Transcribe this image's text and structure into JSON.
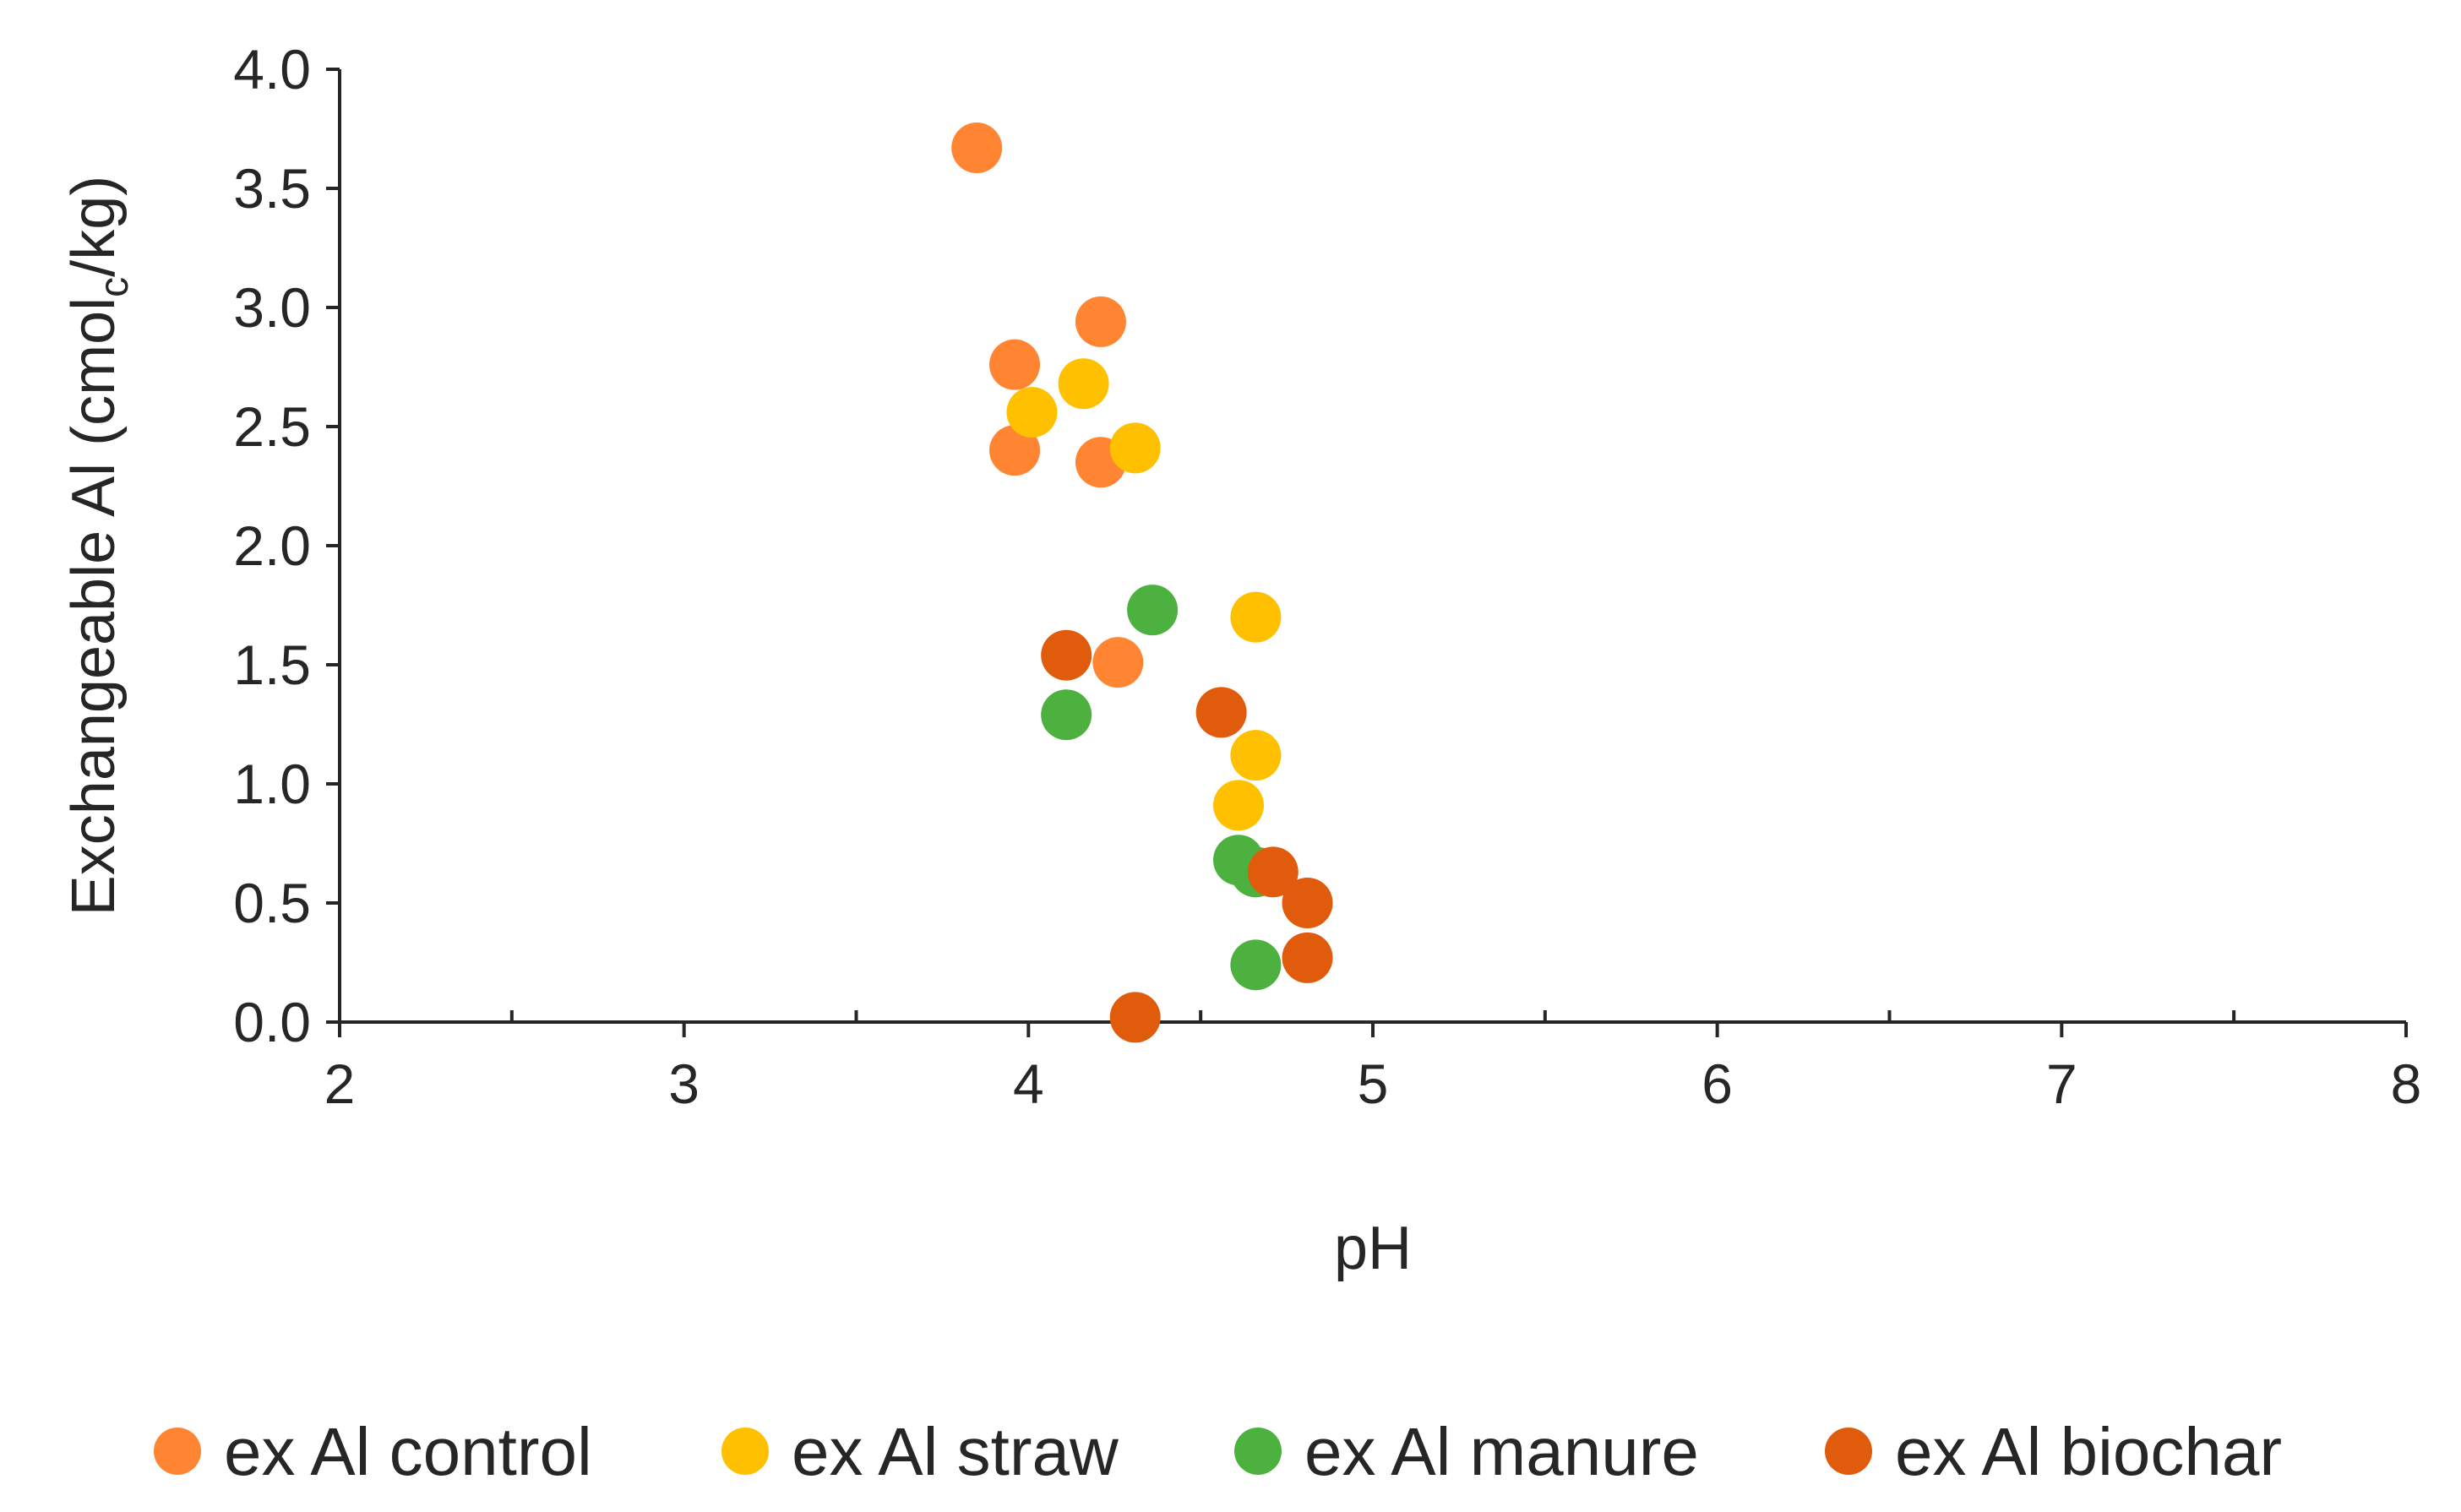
{
  "chart_data": {
    "type": "scatter",
    "title": "",
    "xlabel": "pH",
    "ylabel": {
      "main": "Exchangeable Al (cmol",
      "subscript": "c",
      "suffix": "/kg)"
    },
    "xlim": [
      2,
      8
    ],
    "ylim": [
      0,
      4
    ],
    "xticks": [
      2,
      3,
      4,
      5,
      6,
      7,
      8
    ],
    "xtick_labels": [
      "2",
      "3",
      "4",
      "5",
      "6",
      "7",
      "8"
    ],
    "yticks": [
      0,
      0.5,
      1,
      1.5,
      2,
      2.5,
      3,
      3.5,
      4
    ],
    "ytick_labels": [
      "0.0",
      "0.5",
      "1.0",
      "1.5",
      "2.0",
      "2.5",
      "3.0",
      "3.5",
      "4.0"
    ],
    "grid": false,
    "legend_position": "bottom",
    "series": [
      {
        "name": "ex Al control",
        "color": "#FF8533",
        "points": [
          {
            "x": 3.85,
            "y": 3.67
          },
          {
            "x": 4.21,
            "y": 2.94
          },
          {
            "x": 3.96,
            "y": 2.76
          },
          {
            "x": 3.96,
            "y": 2.4
          },
          {
            "x": 4.21,
            "y": 2.35
          },
          {
            "x": 4.26,
            "y": 1.51
          }
        ]
      },
      {
        "name": "ex Al straw",
        "color": "#FFC000",
        "points": [
          {
            "x": 4.16,
            "y": 2.68
          },
          {
            "x": 4.01,
            "y": 2.56
          },
          {
            "x": 4.31,
            "y": 2.41
          },
          {
            "x": 4.66,
            "y": 1.7
          },
          {
            "x": 4.66,
            "y": 1.12
          },
          {
            "x": 4.61,
            "y": 0.91
          }
        ]
      },
      {
        "name": "ex Al manure",
        "color": "#4CB13F",
        "points": [
          {
            "x": 4.36,
            "y": 1.73
          },
          {
            "x": 4.11,
            "y": 1.29
          },
          {
            "x": 4.61,
            "y": 0.68
          },
          {
            "x": 4.66,
            "y": 0.63
          },
          {
            "x": 4.66,
            "y": 0.24
          }
        ]
      },
      {
        "name": "ex Al biochar",
        "color": "#E05C0C",
        "points": [
          {
            "x": 4.11,
            "y": 1.54
          },
          {
            "x": 4.56,
            "y": 1.3
          },
          {
            "x": 4.71,
            "y": 0.63
          },
          {
            "x": 4.81,
            "y": 0.5
          },
          {
            "x": 4.81,
            "y": 0.27
          },
          {
            "x": 4.31,
            "y": 0.02
          }
        ]
      }
    ]
  }
}
